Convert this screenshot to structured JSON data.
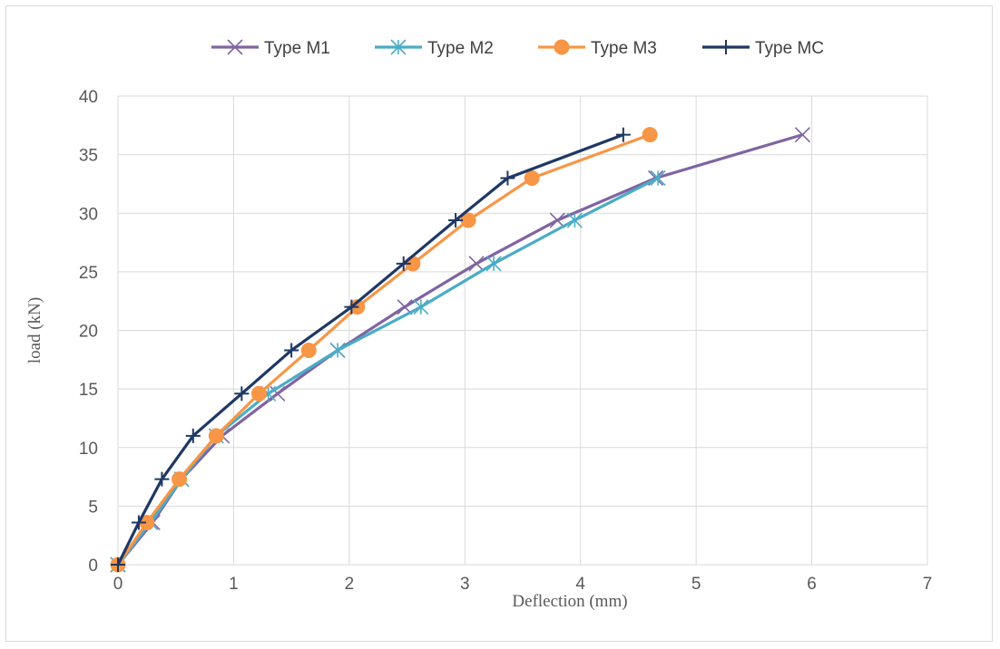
{
  "chart_data": {
    "type": "line",
    "xlabel": "Deflection (mm)",
    "ylabel": "load (kN)",
    "xlim": [
      0,
      7
    ],
    "ylim": [
      0,
      40
    ],
    "xticks": [
      0,
      1,
      2,
      3,
      4,
      5,
      6,
      7
    ],
    "yticks": [
      0,
      5,
      10,
      15,
      20,
      25,
      30,
      35,
      40
    ],
    "grid": true,
    "legend_position": "top",
    "series": [
      {
        "name": "Type M1",
        "color": "#8064a2",
        "marker": "x",
        "x": [
          0,
          0.3,
          0.55,
          0.9,
          1.38,
          1.9,
          2.48,
          3.1,
          3.8,
          4.65,
          5.92
        ],
        "y": [
          0,
          3.6,
          7.3,
          11.0,
          14.6,
          18.3,
          22.0,
          25.7,
          29.4,
          33.0,
          36.7
        ]
      },
      {
        "name": "Type M2",
        "color": "#4bacc6",
        "marker": "asterisk",
        "x": [
          0,
          0.28,
          0.55,
          0.85,
          1.3,
          1.9,
          2.62,
          3.25,
          3.95,
          4.67
        ],
        "y": [
          0,
          3.6,
          7.3,
          11.0,
          14.6,
          18.3,
          22.0,
          25.7,
          29.4,
          33.0
        ]
      },
      {
        "name": "Type M3",
        "color": "#f79646",
        "marker": "circle",
        "x": [
          0,
          0.25,
          0.53,
          0.85,
          1.22,
          1.65,
          2.07,
          2.55,
          3.03,
          3.58,
          4.6
        ],
        "y": [
          0,
          3.6,
          7.3,
          11.0,
          14.6,
          18.3,
          22.0,
          25.7,
          29.4,
          33.0,
          36.7
        ]
      },
      {
        "name": "Type MC",
        "color": "#1f3864",
        "marker": "plus",
        "x": [
          0,
          0.18,
          0.38,
          0.65,
          1.07,
          1.5,
          2.02,
          2.47,
          2.92,
          3.37,
          4.37
        ],
        "y": [
          0,
          3.6,
          7.3,
          11.0,
          14.6,
          18.3,
          22.0,
          25.7,
          29.4,
          33.0,
          36.7
        ]
      }
    ]
  }
}
